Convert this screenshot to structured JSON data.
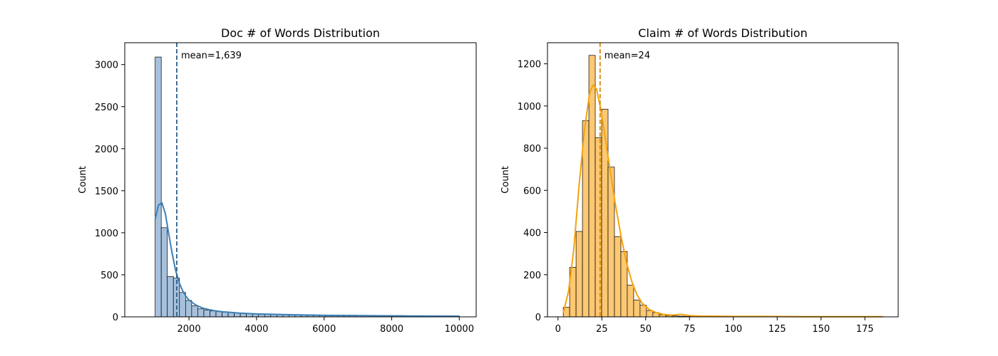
{
  "chart_data": [
    {
      "type": "bar",
      "title": "Doc # of Words Distribution",
      "xlabel": "",
      "ylabel": "Count",
      "xlim": [
        100,
        10500
      ],
      "ylim": [
        0,
        3260
      ],
      "xticks": [
        2000,
        4000,
        6000,
        8000,
        10000
      ],
      "xtick_labels": [
        "2000",
        "4000",
        "6000",
        "8000",
        "10000"
      ],
      "yticks": [
        0,
        500,
        1000,
        1500,
        2000,
        2500,
        3000
      ],
      "ytick_labels": [
        "0",
        "500",
        "1000",
        "1500",
        "2000",
        "2500",
        "3000"
      ],
      "bin_start": 1000,
      "bin_width": 180,
      "values": [
        3090,
        1060,
        480,
        460,
        290,
        195,
        130,
        95,
        80,
        70,
        62,
        55,
        50,
        45,
        42,
        38,
        36,
        34,
        32,
        30,
        29,
        28,
        27,
        26,
        25,
        24,
        23,
        22,
        21,
        20,
        20,
        19,
        19,
        18,
        18,
        17,
        17,
        16,
        16,
        15,
        15,
        14,
        14,
        13,
        13,
        12,
        12,
        11,
        11,
        10
      ],
      "kde": {
        "x": [
          1000,
          1100,
          1200,
          1300,
          1400,
          1500,
          1600,
          1700,
          1800,
          1900,
          2000,
          2200,
          2400,
          2600,
          2800,
          3000,
          3500,
          4000,
          5000,
          6000,
          7000,
          8000,
          9000,
          10000
        ],
        "y": [
          1160,
          1330,
          1355,
          1230,
          990,
          760,
          560,
          420,
          320,
          250,
          200,
          140,
          105,
          85,
          70,
          60,
          45,
          35,
          25,
          18,
          15,
          12,
          10,
          8
        ]
      },
      "mean": 1639,
      "mean_label": "mean=1,639",
      "colors": {
        "bar_fill": "#a7c1dd",
        "bar_edge": "#000000",
        "kde": "#3b7fb6",
        "mean_line": "#2f5f8a"
      }
    },
    {
      "type": "bar",
      "title": "Claim # of Words Distribution",
      "xlabel": "",
      "ylabel": "Count",
      "xlim": [
        -6,
        194
      ],
      "ylim": [
        0,
        1300
      ],
      "xticks": [
        0,
        25,
        50,
        75,
        100,
        125,
        150,
        175
      ],
      "xtick_labels": [
        "0",
        "25",
        "50",
        "75",
        "100",
        "125",
        "150",
        "175"
      ],
      "yticks": [
        0,
        200,
        400,
        600,
        800,
        1000,
        1200
      ],
      "ytick_labels": [
        "0",
        "200",
        "400",
        "600",
        "800",
        "1000",
        "1200"
      ],
      "bin_start": 3,
      "bin_width": 3.65,
      "values": [
        45,
        235,
        405,
        930,
        1240,
        850,
        985,
        710,
        380,
        310,
        150,
        80,
        55,
        30,
        20,
        10,
        6,
        4,
        3,
        2,
        2,
        1,
        1,
        1,
        1,
        1,
        1,
        1,
        1,
        1,
        1,
        1,
        1,
        1,
        1,
        1,
        1,
        1,
        1,
        1,
        1,
        1,
        1,
        1,
        1,
        1,
        1,
        1,
        1,
        1
      ],
      "kde": {
        "x": [
          3,
          6,
          9,
          12,
          15,
          18,
          20,
          22,
          24,
          26,
          28,
          30,
          33,
          36,
          39,
          42,
          45,
          48,
          52,
          56,
          60,
          65,
          70,
          75,
          80,
          90,
          100,
          120,
          140,
          160,
          185
        ],
        "y": [
          20,
          120,
          320,
          620,
          880,
          1060,
          1100,
          1080,
          1000,
          900,
          790,
          680,
          520,
          380,
          260,
          170,
          105,
          65,
          35,
          20,
          12,
          8,
          12,
          6,
          4,
          3,
          2,
          2,
          1,
          1,
          1
        ]
      },
      "mean": 24,
      "mean_label": "mean=24",
      "colors": {
        "bar_fill": "#fdc873",
        "bar_edge": "#000000",
        "kde": "#f5a30a",
        "mean_line": "#d68a00"
      }
    }
  ]
}
